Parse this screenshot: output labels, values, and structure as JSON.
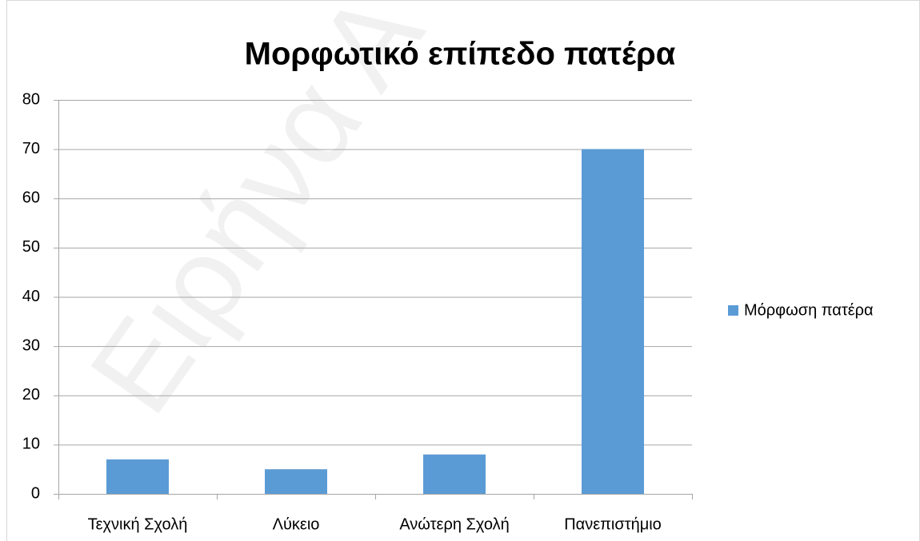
{
  "chart_data": {
    "type": "bar",
    "title": "Μορφωτικό επίπεδο πατέρα",
    "categories": [
      "Τεχνική Σχολή",
      "Λύκειο",
      "Ανώτερη Σχολή",
      "Πανεπιστήμιο"
    ],
    "series": [
      {
        "name": "Μόρφωση πατέρα",
        "color": "#5b9bd5",
        "values": [
          7,
          5,
          8,
          70
        ]
      }
    ],
    "ylim": [
      0,
      80
    ],
    "yticks": [
      0,
      10,
      20,
      30,
      40,
      50,
      60,
      70,
      80
    ],
    "grid": true,
    "legend": "right",
    "watermark": "Ειρήνα Α"
  }
}
